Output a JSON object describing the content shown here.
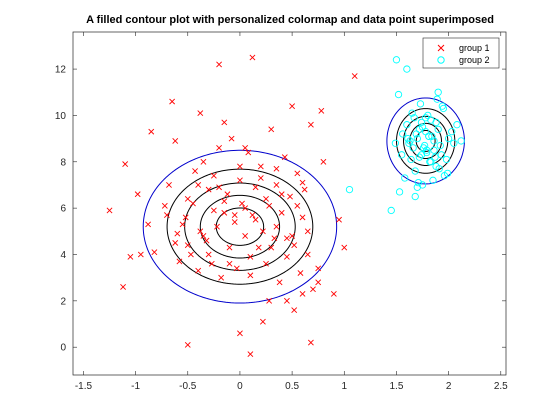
{
  "chart_data": {
    "type": "scatter",
    "title": "A filled contour plot with personalized colormap and data point superimposed",
    "xlabel": "",
    "ylabel": "",
    "xlim": [
      -1.6,
      2.55
    ],
    "ylim": [
      -1.2,
      13.6
    ],
    "x_ticks": [
      -1.5,
      -1,
      -0.5,
      0,
      0.5,
      1,
      1.5,
      2,
      2.5
    ],
    "y_ticks": [
      0,
      2,
      4,
      6,
      8,
      10,
      12
    ],
    "x_tick_labels": [
      "-1.5",
      "-1",
      "-0.5",
      "0",
      "0.5",
      "1",
      "1.5",
      "2",
      "2.5"
    ],
    "y_tick_labels": [
      "0",
      "2",
      "4",
      "6",
      "8",
      "10",
      "12"
    ],
    "grid": false,
    "legend_position": "top-right",
    "colors": {
      "group_1": "#ff0000",
      "group_2": "#00ffff",
      "outer_contour": "#0000cc",
      "inner_contours": "#000000"
    },
    "series": [
      {
        "name": "group 1",
        "marker": "x",
        "x": [
          -1.25,
          -1.12,
          -0.95,
          -0.98,
          -0.88,
          -0.82,
          -0.72,
          -0.68,
          -0.62,
          -0.58,
          -0.52,
          -0.5,
          -0.47,
          -0.43,
          -0.4,
          -0.38,
          -0.35,
          -0.32,
          -0.3,
          -0.27,
          -0.25,
          -0.22,
          -0.2,
          -0.18,
          -0.15,
          -0.12,
          -0.1,
          -0.08,
          -0.05,
          -0.03,
          0.0,
          0.02,
          0.05,
          0.08,
          0.1,
          0.12,
          0.15,
          0.18,
          0.2,
          0.22,
          0.25,
          0.28,
          0.3,
          0.33,
          0.35,
          0.38,
          0.4,
          0.43,
          0.45,
          0.48,
          0.5,
          0.52,
          0.55,
          0.58,
          0.6,
          0.62,
          0.65,
          0.68,
          0.7,
          0.75,
          0.8,
          -0.6,
          -0.55,
          -0.45,
          -0.35,
          -0.25,
          -0.15,
          -0.05,
          0.05,
          0.15,
          0.25,
          0.35,
          0.45,
          0.55,
          0.65,
          -0.7,
          -0.5,
          -0.3,
          -0.1,
          0.1,
          0.3,
          0.5,
          -0.4,
          -0.2,
          0.0,
          0.2,
          0.4,
          0.6,
          -0.2,
          0.28,
          0.52,
          1.1,
          1.0,
          -1.1,
          -1.05,
          0.78,
          0.0,
          0.22,
          -0.5,
          0.1,
          0.45,
          0.6,
          -0.85,
          -0.65,
          -0.15,
          0.05,
          0.35,
          0.75,
          0.95,
          -0.38,
          -0.62,
          0.9,
          0.12,
          0.68
        ],
        "y": [
          5.9,
          2.6,
          4.0,
          6.6,
          5.3,
          4.1,
          6.1,
          7.0,
          4.5,
          3.7,
          5.6,
          6.4,
          4.0,
          7.6,
          3.3,
          5.0,
          8.0,
          4.6,
          6.8,
          3.6,
          7.4,
          5.2,
          8.6,
          3.0,
          5.8,
          6.6,
          4.3,
          9.0,
          5.4,
          3.4,
          7.2,
          6.2,
          4.8,
          8.4,
          3.1,
          5.7,
          6.9,
          4.3,
          7.8,
          5.0,
          3.6,
          6.1,
          9.4,
          4.7,
          7.0,
          2.8,
          5.8,
          8.2,
          3.9,
          6.5,
          10.4,
          4.4,
          7.5,
          3.2,
          5.6,
          6.8,
          4.0,
          9.6,
          2.5,
          3.4,
          8.0,
          4.9,
          5.3,
          6.2,
          4.8,
          5.9,
          6.3,
          5.7,
          6.0,
          5.5,
          6.4,
          5.2,
          4.7,
          6.1,
          5.0,
          5.7,
          4.4,
          4.0,
          3.6,
          3.9,
          4.3,
          4.8,
          7.0,
          6.9,
          7.8,
          7.3,
          6.6,
          7.1,
          12.2,
          2.0,
          1.6,
          11.7,
          4.3,
          7.9,
          3.9,
          10.2,
          0.6,
          1.1,
          0.1,
          -0.3,
          2.0,
          2.3,
          9.3,
          10.6,
          9.7,
          8.6,
          7.7,
          2.8,
          5.5,
          10.1,
          8.9,
          2.3,
          12.5,
          0.2
        ],
        "hidden_note": ""
      },
      {
        "name": "group 2",
        "marker": "o",
        "x": [
          1.5,
          1.55,
          1.6,
          1.62,
          1.65,
          1.68,
          1.7,
          1.72,
          1.74,
          1.76,
          1.78,
          1.8,
          1.82,
          1.84,
          1.86,
          1.88,
          1.9,
          1.92,
          1.95,
          1.98,
          2.0,
          2.05,
          1.58,
          1.63,
          1.67,
          1.71,
          1.75,
          1.79,
          1.83,
          1.87,
          1.91,
          1.56,
          1.66,
          1.73,
          1.81,
          1.89,
          1.96,
          1.7,
          1.78,
          1.85,
          1.52,
          1.93,
          2.08,
          1.45,
          1.05,
          1.6,
          1.75,
          1.9,
          2.03,
          1.64,
          1.69,
          1.77,
          1.86,
          1.53,
          1.99,
          1.72,
          1.83,
          1.61,
          1.79,
          1.94,
          1.49,
          1.88,
          1.74,
          2.12,
          1.68,
          1.81
        ],
        "y": [
          12.4,
          8.3,
          9.6,
          8.8,
          10.1,
          7.6,
          9.0,
          8.2,
          9.7,
          8.6,
          9.3,
          10.0,
          8.0,
          9.1,
          8.5,
          7.8,
          9.4,
          8.7,
          10.3,
          8.1,
          9.0,
          8.8,
          7.3,
          8.9,
          9.9,
          7.1,
          9.5,
          8.4,
          9.8,
          8.2,
          7.7,
          9.2,
          8.6,
          10.5,
          9.1,
          10.7,
          7.4,
          6.9,
          9.9,
          7.2,
          10.9,
          8.3,
          9.6,
          5.9,
          6.8,
          12.0,
          7.0,
          11.0,
          9.3,
          8.1,
          9.2,
          8.7,
          8.9,
          6.7,
          7.5,
          9.4,
          8.0,
          9.0,
          8.5,
          10.4,
          8.8,
          9.7,
          8.3,
          8.9,
          6.5,
          9.1
        ]
      }
    ],
    "contours_note": ""
  }
}
